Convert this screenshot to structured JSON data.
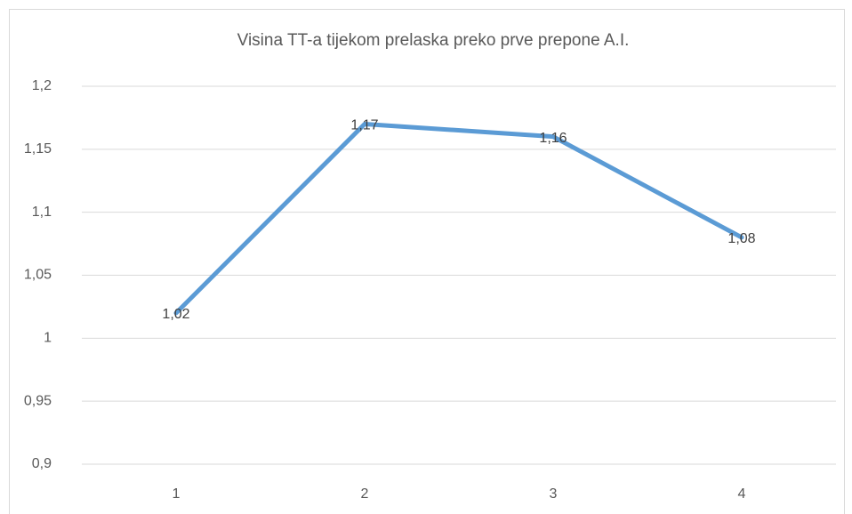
{
  "chart_data": {
    "type": "line",
    "title": "Visina TT-a tijekom prelaska preko prve prepone A.I.",
    "categories": [
      "1",
      "2",
      "3",
      "4"
    ],
    "series": [
      {
        "color": "#5b9bd5",
        "values": [
          1.02,
          1.17,
          1.16,
          1.08
        ],
        "value_labels": [
          "1,02",
          "1,17",
          "1,16",
          "1,08"
        ]
      }
    ],
    "ylim": [
      0.9,
      1.2
    ],
    "yticks": [
      {
        "value": 0.9,
        "label": "0,9"
      },
      {
        "value": 0.95,
        "label": "0,95"
      },
      1,
      {
        "value": 1.05,
        "label": "1,05"
      },
      {
        "value": 1.1,
        "label": "1,1"
      },
      {
        "value": 1.15,
        "label": "1,15"
      },
      {
        "value": 1.2,
        "label": "1,2"
      }
    ],
    "grid": true
  }
}
